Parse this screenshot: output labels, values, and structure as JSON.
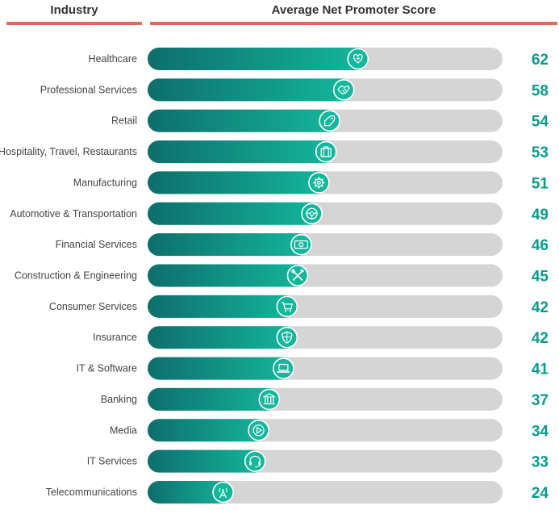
{
  "header": {
    "industry_label": "Industry",
    "score_label": "Average Net Promoter Score"
  },
  "colors": {
    "accent_rule": "#e06a5f",
    "bar_gradient_start": "#0e6e6c",
    "bar_gradient_end": "#14b79c",
    "track": "#d5d5d5",
    "value_text": "#0c9b8b",
    "label_text": "#444444"
  },
  "chart_data": {
    "type": "bar",
    "orientation": "horizontal",
    "title": "Average Net Promoter Score",
    "xlim": [
      0,
      100
    ],
    "grid": false,
    "legend": "none",
    "categories": [
      "Healthcare",
      "Professional Services",
      "Retail",
      "Hospitality, Travel, Restaurants",
      "Manufacturing",
      "Automotive & Transportation",
      "Financial Services",
      "Construction & Engineering",
      "Consumer Services",
      "Insurance",
      "IT & Software",
      "Banking",
      "Media",
      "IT Services",
      "Telecommunications"
    ],
    "values": [
      62,
      58,
      54,
      53,
      51,
      49,
      46,
      45,
      42,
      42,
      41,
      37,
      34,
      33,
      24
    ],
    "icons": [
      "heart-cross-icon",
      "handshake-icon",
      "price-tag-icon",
      "suitcase-icon",
      "gear-icon",
      "steering-wheel-icon",
      "banknote-icon",
      "tools-icon",
      "shopping-cart-icon",
      "shield-icon",
      "laptop-icon",
      "bank-icon",
      "play-icon",
      "headset-icon",
      "antenna-tower-icon"
    ]
  }
}
